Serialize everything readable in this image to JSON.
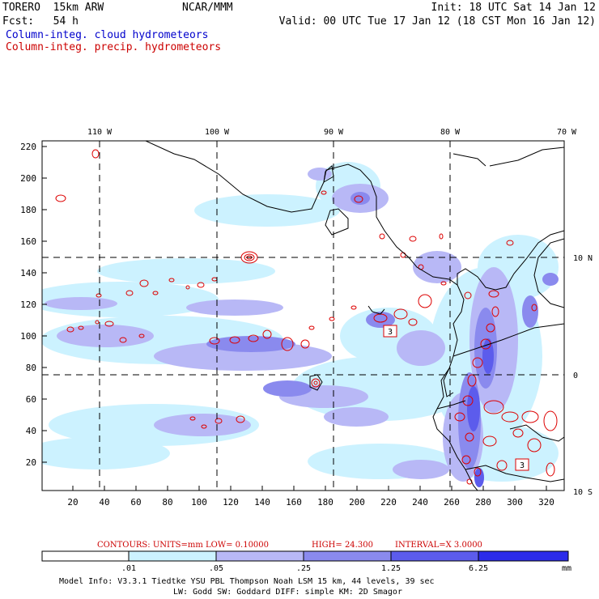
{
  "header": {
    "line1_left": "TORERO  15km ARW",
    "line1_mid": "NCAR/MMM",
    "line1_right": "Init: 18 UTC Sat 14 Jan 12",
    "line2_left": "Fcst:   54 h",
    "line2_right": "Valid: 00 UTC Tue 17 Jan 12 (18 CST Mon 16 Jan 12)",
    "legend_cloud": "Column-integ. cloud hydrometeors",
    "legend_precip": "Column-integ. precip. hydrometeors"
  },
  "colors": {
    "cloud_text": "#0000cc",
    "precip_contour": "#dd0000",
    "coast": "#000000",
    "shade_levels": [
      "#ffffff",
      "#ccf2ff",
      "#b8b8f6",
      "#8a8aee",
      "#5c5cec",
      "#2b2bea"
    ]
  },
  "map": {
    "top_lon_labels": [
      "110 W",
      "100 W",
      "90 W",
      "80 W",
      "70 W"
    ],
    "right_lat_labels": [
      "10 N",
      "0",
      "10 S"
    ],
    "y_ticks": [
      "220",
      "200",
      "180",
      "160",
      "140",
      "120",
      "100",
      "80",
      "60",
      "40",
      "20"
    ],
    "x_ticks": [
      "20",
      "40",
      "60",
      "80",
      "100",
      "120",
      "140",
      "160",
      "180",
      "200",
      "220",
      "240",
      "260",
      "280",
      "300",
      "320"
    ],
    "boxes": [
      "3",
      "3"
    ]
  },
  "contour_info": {
    "label": "CONTOURS:  UNITS=mm  LOW= 0.10000",
    "high": "HIGH=  24.300",
    "interval": "INTERVAL=X  3.0000"
  },
  "colorbar": {
    "ticks": [
      ".01",
      ".05",
      ".25",
      "1.25",
      "6.25"
    ],
    "units": "mm"
  },
  "footer": {
    "line1": "Model Info: V3.3.1    Tiedtke YSU PBL  Thompson     Noah LSM  15 km,   44 levels,   39 sec",
    "line2": "LW: Godd SW: Goddard DIFF: simple KM: 2D Smagor"
  }
}
